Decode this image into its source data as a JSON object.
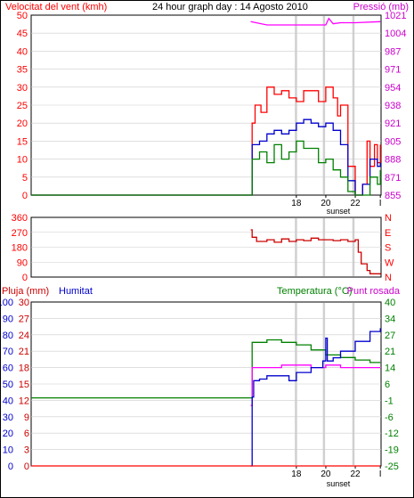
{
  "header": {
    "wind_label": "Velocitat del vent (kmh)",
    "graph_title": "24 hour graph day : 14 Agosto 2010",
    "pressure_label": "Pressió (mb)"
  },
  "bottom_header": {
    "rain_label": "Pluja (mm)",
    "humidity_label": "Humitat",
    "temperature_label": "Temperatura (°C)",
    "dewpoint_label": "Punt rosada"
  },
  "sunset_label": "sunset",
  "colors": {
    "wind_axis": "#ff0000",
    "pressure_axis": "#cc00cc",
    "rain_axis": "#cc0000",
    "humidity_axis": "#0000cc",
    "temperature_axis": "#008000",
    "gust": "#ff0000",
    "wind_avg": "#0000cc",
    "wind_low": "#008000",
    "pressure": "#ff00ff",
    "direction": "#cc0000",
    "temperature": "#008000",
    "dewpoint": "#ff00ff",
    "humidity": "#0000cc",
    "rain": "#ff0000",
    "sunset_band": "#d0d0d0",
    "grid": "#888888",
    "background": "#ffffff"
  },
  "chart_data": [
    {
      "type": "line",
      "panel": "wind-pressure",
      "x_ticks": [
        "18",
        "20",
        "22",
        "I"
      ],
      "y_left": {
        "label": "Velocitat del vent (kmh)",
        "ticks": [
          "0",
          "5",
          "10",
          "15",
          "20",
          "25",
          "30",
          "35",
          "40",
          "45",
          "50"
        ],
        "range": [
          0,
          50
        ]
      },
      "y_right": {
        "label": "Pressió (mb)",
        "ticks": [
          "855",
          "871",
          "888",
          "905",
          "921",
          "938",
          "954",
          "971",
          "987",
          "1004",
          "1021"
        ],
        "range": [
          855,
          1021
        ]
      },
      "grid": true,
      "series": [
        {
          "role": "gust",
          "axis": "left",
          "color": "#ff0000",
          "x": [
            0,
            14.9,
            15.0,
            15.2,
            15.6,
            16.0,
            16.5,
            17.0,
            17.5,
            18.0,
            18.5,
            19.0,
            19.5,
            20.0,
            20.5,
            20.8,
            21.0,
            21.5,
            22.0,
            22.5,
            22.8,
            23.0,
            23.3,
            23.5,
            23.7
          ],
          "y": [
            0,
            0,
            20,
            25,
            23,
            30,
            28,
            29,
            27,
            26,
            29,
            29,
            26,
            30,
            27,
            22,
            25,
            8,
            0,
            3,
            15,
            8,
            14,
            9,
            14
          ]
        },
        {
          "role": "average",
          "axis": "left",
          "color": "#0000cc",
          "x": [
            0,
            14.9,
            15.0,
            15.5,
            16.0,
            16.5,
            17.0,
            17.5,
            18.0,
            18.5,
            19.0,
            19.5,
            20.0,
            20.5,
            21.0,
            21.5,
            22.0,
            22.5,
            23.0,
            23.5,
            23.7
          ],
          "y": [
            0,
            0,
            14,
            15,
            17,
            18,
            17,
            18,
            20,
            21,
            20,
            19,
            20,
            18,
            14,
            4,
            0,
            3,
            10,
            8,
            9
          ]
        },
        {
          "role": "low",
          "axis": "left",
          "color": "#008000",
          "x": [
            0,
            14.9,
            15.0,
            15.5,
            16.0,
            16.5,
            17.0,
            17.5,
            18.0,
            18.5,
            19.0,
            19.5,
            20.0,
            20.5,
            21.0,
            21.5,
            22.0,
            22.5,
            23.0,
            23.5,
            23.7
          ],
          "y": [
            0,
            0,
            10,
            12,
            9,
            14,
            10,
            12,
            15,
            13,
            13,
            9,
            10,
            7,
            5,
            1,
            0,
            0,
            5,
            3,
            7
          ]
        },
        {
          "role": "pressure",
          "axis": "right",
          "color": "#ff00ff",
          "x": [
            14.9,
            16.0,
            18.0,
            20.0,
            20.2,
            20.5,
            21.0,
            22.0,
            23.7
          ],
          "y": [
            1015,
            1012,
            1012,
            1012,
            1018,
            1013,
            1014,
            1014,
            1015
          ]
        }
      ]
    },
    {
      "type": "line",
      "panel": "wind-direction",
      "y_left": {
        "ticks": [
          "0",
          "90",
          "180",
          "270",
          "360"
        ],
        "range": [
          0,
          360
        ]
      },
      "y_right": {
        "ticks": [
          "N",
          "W",
          "S",
          "E",
          "N"
        ]
      },
      "series": [
        {
          "role": "direction",
          "axis": "left",
          "color": "#cc0000",
          "x": [
            14.9,
            15.0,
            15.3,
            16.0,
            16.5,
            17.0,
            17.5,
            18.0,
            18.5,
            19.0,
            19.5,
            20.0,
            20.5,
            21.0,
            21.5,
            22.0,
            22.2,
            22.4,
            22.8,
            23.0,
            23.7
          ],
          "y": [
            285,
            240,
            215,
            225,
            210,
            230,
            215,
            225,
            220,
            235,
            225,
            225,
            220,
            225,
            215,
            225,
            150,
            80,
            40,
            20,
            15
          ]
        }
      ]
    },
    {
      "type": "line",
      "panel": "rain-humidity-temperature",
      "x_ticks": [
        "18",
        "20",
        "22",
        "I"
      ],
      "y_left_rain": {
        "label": "Pluja (mm)",
        "ticks": [
          "0",
          "3",
          "6",
          "9",
          "12",
          "15",
          "18",
          "21",
          "24",
          "27",
          "30"
        ],
        "range": [
          0,
          30
        ]
      },
      "y_left_humidity": {
        "label": "Humitat",
        "ticks": [
          "0",
          "10",
          "20",
          "30",
          "40",
          "50",
          "60",
          "70",
          "80",
          "90",
          "100"
        ],
        "range": [
          0,
          100
        ]
      },
      "y_right": {
        "label": "Temperatura (°C)",
        "ticks": [
          "-25",
          "-19",
          "-12",
          "-6",
          "-1",
          "6",
          "14",
          "21",
          "27",
          "34",
          "40"
        ],
        "range": [
          -25,
          40
        ]
      },
      "series": [
        {
          "role": "temperature",
          "axis": "right",
          "color": "#008000",
          "x": [
            0,
            14.9,
            15.0,
            16.0,
            17.0,
            18.0,
            19.0,
            20.0,
            21.0,
            22.0,
            23.0,
            23.7
          ],
          "y": [
            2,
            2,
            24,
            25,
            24,
            23,
            21,
            19,
            18,
            17,
            16,
            16
          ]
        },
        {
          "role": "dewpoint",
          "axis": "right",
          "color": "#ff00ff",
          "x": [
            14.9,
            15.0,
            16.0,
            17.0,
            18.0,
            19.0,
            20.0,
            21.0,
            22.0,
            23.0,
            23.7
          ],
          "y": [
            -1,
            14,
            14,
            15,
            15,
            14,
            15,
            14,
            14,
            14,
            14
          ]
        },
        {
          "role": "humidity",
          "axis": "left_humidity",
          "color": "#0000cc",
          "x": [
            14.9,
            15.0,
            15.1,
            15.5,
            16.0,
            17.0,
            17.5,
            18.0,
            19.0,
            19.8,
            20.0,
            20.1,
            20.5,
            21.0,
            22.0,
            23.0,
            23.7
          ],
          "y": [
            0,
            42,
            52,
            53,
            55,
            55,
            52,
            57,
            60,
            64,
            78,
            64,
            66,
            70,
            76,
            82,
            84
          ]
        },
        {
          "role": "rain",
          "axis": "left_rain",
          "color": "#ff0000",
          "x": [
            0,
            23.7
          ],
          "y": [
            0,
            0
          ]
        }
      ]
    }
  ]
}
